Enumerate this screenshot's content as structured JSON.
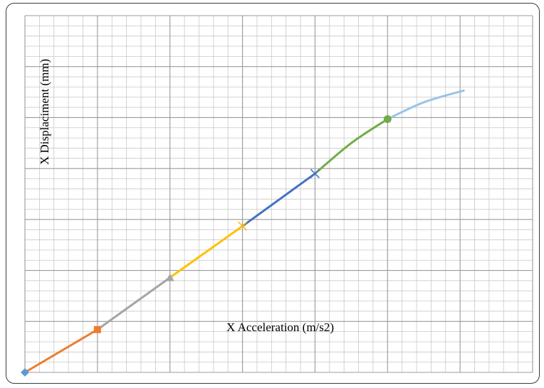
{
  "chart_data": {
    "type": "line",
    "xlabel": "X  Acceleration (m/s2)",
    "ylabel": "X Displaciment  (mm)",
    "grid": true,
    "axis_tick_labels_shown": false,
    "xlim": [
      0,
      7
    ],
    "ylim": [
      0,
      7
    ],
    "series": [
      {
        "color": "#ED7D31",
        "marker": "diamond",
        "marker_color": "#5B9BD5",
        "points": [
          [
            0,
            0
          ],
          [
            1,
            0.84
          ]
        ]
      },
      {
        "color": "#A5A5A5",
        "marker": "square",
        "marker_color": "#ED7D31",
        "points": [
          [
            1,
            0.84
          ],
          [
            2,
            1.86
          ]
        ]
      },
      {
        "color": "#FFC000",
        "marker": "triangle",
        "marker_color": "#A5A5A5",
        "points": [
          [
            2,
            1.86
          ],
          [
            3,
            2.87
          ]
        ]
      },
      {
        "color": "#4472C4",
        "marker": "x",
        "marker_color": "#FFC000",
        "points": [
          [
            3,
            2.87
          ],
          [
            4,
            3.9
          ]
        ]
      },
      {
        "color": "#70AD47",
        "marker": "x",
        "marker_color": "#4472C4",
        "points": [
          [
            4,
            3.9
          ],
          [
            4.5,
            4.5
          ],
          [
            5,
            4.97
          ]
        ]
      },
      {
        "color": "#9DC3E6",
        "marker": "circle",
        "marker_color": "#70AD47",
        "points": [
          [
            5,
            4.97
          ],
          [
            5.5,
            5.3
          ],
          [
            6.05,
            5.53
          ]
        ]
      }
    ]
  }
}
